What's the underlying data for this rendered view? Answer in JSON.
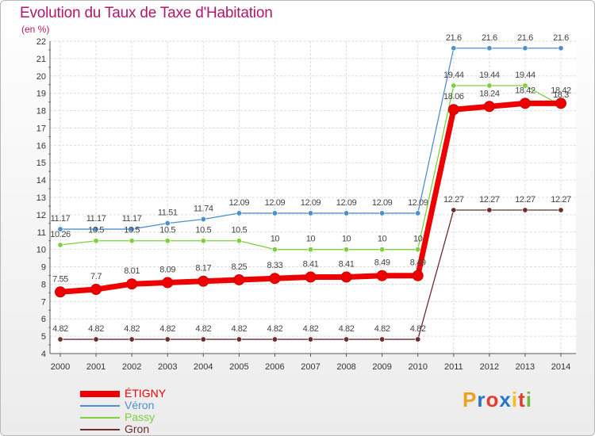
{
  "header": {
    "title": "Evolution du Taux de Taxe d'Habitation",
    "subtitle": "(en %)"
  },
  "logo": {
    "text": "Proxiti",
    "colors": [
      "#f0a020",
      "#2a74c8",
      "#e23c2c",
      "#2a74c8",
      "#f0c020",
      "#e23c2c",
      "#6cbb3c"
    ]
  },
  "chart_data": {
    "type": "line",
    "x": [
      "2000",
      "2001",
      "2002",
      "2003",
      "2004",
      "2005",
      "2006",
      "2007",
      "2008",
      "2009",
      "2010",
      "2011",
      "2012",
      "2013",
      "2014"
    ],
    "ylim": [
      4,
      22
    ],
    "yticks": [
      "4",
      "5",
      "6",
      "7",
      "8",
      "9",
      "10",
      "11",
      "12",
      "13",
      "14",
      "15",
      "16",
      "17",
      "18",
      "19",
      "20",
      "21",
      "22"
    ],
    "grid": true,
    "legend_position": "bottom-left",
    "series": [
      {
        "name": "Véron",
        "color": "#4f8fc9",
        "values": [
          11.17,
          11.17,
          11.17,
          11.51,
          11.74,
          12.09,
          12.09,
          12.09,
          12.09,
          12.09,
          12.09,
          21.6,
          21.6,
          21.6,
          21.6
        ],
        "labels": [
          "11.17",
          "11.17",
          "11.17",
          "11.51",
          "11.74",
          "12.09",
          "12.09",
          "12.09",
          "12.09",
          "12.09",
          "12.09",
          "21.6",
          "21.6",
          "21.6",
          "21.6"
        ]
      },
      {
        "name": "Passy",
        "color": "#7dcf3c",
        "values": [
          10.26,
          10.5,
          10.5,
          10.5,
          10.5,
          10.5,
          10,
          10,
          10,
          10,
          10,
          19.44,
          19.44,
          19.44,
          18.3
        ],
        "labels": [
          "10.26",
          "10.5",
          "10.5",
          "10.5",
          "10.5",
          "10.5",
          "10",
          "10",
          "10",
          "10",
          "10",
          "19.44",
          "19.44",
          "19.44",
          "18.3"
        ]
      },
      {
        "name": "Gron",
        "color": "#6b2d2d",
        "values": [
          4.82,
          4.82,
          4.82,
          4.82,
          4.82,
          4.82,
          4.82,
          4.82,
          4.82,
          4.82,
          4.82,
          12.27,
          12.27,
          12.27,
          12.27
        ],
        "labels": [
          "4.82",
          "4.82",
          "4.82",
          "4.82",
          "4.82",
          "4.82",
          "4.82",
          "4.82",
          "4.82",
          "4.82",
          "4.82",
          "12.27",
          "12.27",
          "12.27",
          "12.27"
        ]
      },
      {
        "name": "ÉTIGNY",
        "color": "#ee0000",
        "values": [
          7.55,
          7.7,
          8.01,
          8.09,
          8.17,
          8.25,
          8.33,
          8.41,
          8.41,
          8.49,
          8.49,
          18.06,
          18.24,
          18.42,
          18.42
        ],
        "labels": [
          "7.55",
          "7.7",
          "8.01",
          "8.09",
          "8.17",
          "8.25",
          "8.33",
          "8.41",
          "8.41",
          "8.49",
          "8.49",
          "18.06",
          "18.24",
          "18.42",
          "18.42"
        ]
      }
    ]
  },
  "legend": {
    "items": [
      {
        "label": "ÉTIGNY",
        "color": "#ee0000"
      },
      {
        "label": "Véron",
        "color": "#4f8fc9"
      },
      {
        "label": "Passy",
        "color": "#7dcf3c"
      },
      {
        "label": "Gron",
        "color": "#6b2d2d"
      }
    ]
  }
}
